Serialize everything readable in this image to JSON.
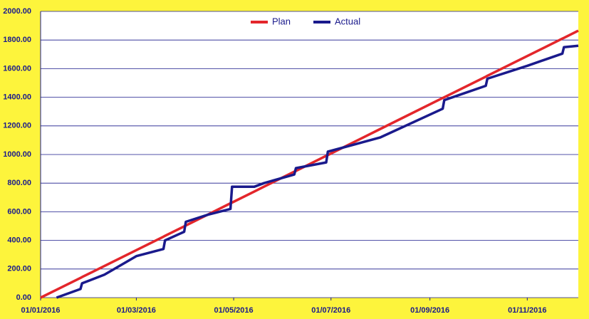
{
  "chart_data": {
    "type": "line",
    "x": [
      "2016-01-01",
      "2016-01-11",
      "2016-01-26",
      "2016-01-27",
      "2016-02-10",
      "2016-03-01",
      "2016-03-18",
      "2016-03-19",
      "2016-03-31",
      "2016-04-01",
      "2016-04-15",
      "2016-04-29",
      "2016-04-30",
      "2016-05-14",
      "2016-05-20",
      "2016-06-08",
      "2016-06-09",
      "2016-06-28",
      "2016-06-29",
      "2016-08-01",
      "2016-09-09",
      "2016-09-10",
      "2016-10-06",
      "2016-10-07",
      "2016-11-01",
      "2016-11-23",
      "2016-11-24",
      "2016-12-03"
    ],
    "series": [
      {
        "name": "Plan",
        "color": "#e3262b",
        "values": [
          0,
          55,
          138,
          144,
          221,
          332,
          426,
          432,
          498,
          504,
          581,
          659,
          664,
          742,
          775,
          880,
          885,
          991,
          996,
          1179,
          1395,
          1400,
          1544,
          1550,
          1688,
          1810,
          1815,
          1865
        ]
      },
      {
        "name": "Actual",
        "color": "#1a1a8c",
        "values": [
          null,
          0,
          60,
          100,
          160,
          290,
          340,
          400,
          460,
          530,
          580,
          620,
          775,
          775,
          800,
          860,
          905,
          945,
          1020,
          1120,
          1320,
          1380,
          1480,
          1530,
          1620,
          1705,
          1750,
          1760
        ]
      }
    ],
    "xlim": [
      "2016-01-01",
      "2016-12-03"
    ],
    "xticks": [
      {
        "value": "2016-01-01",
        "label": "01/01/2016"
      },
      {
        "value": "2016-03-01",
        "label": "01/03/2016"
      },
      {
        "value": "2016-05-01",
        "label": "01/05/2016"
      },
      {
        "value": "2016-07-01",
        "label": "01/07/2016"
      },
      {
        "value": "2016-09-01",
        "label": "01/09/2016"
      },
      {
        "value": "2016-11-01",
        "label": "01/11/2016"
      }
    ],
    "ylim": [
      0,
      2000
    ],
    "yticks": [
      {
        "value": 0,
        "label": "0.00"
      },
      {
        "value": 200,
        "label": "200.00"
      },
      {
        "value": 400,
        "label": "400.00"
      },
      {
        "value": 600,
        "label": "600.00"
      },
      {
        "value": 800,
        "label": "800.00"
      },
      {
        "value": 1000,
        "label": "1000.00"
      },
      {
        "value": 1200,
        "label": "1200.00"
      },
      {
        "value": 1400,
        "label": "1400.00"
      },
      {
        "value": 1600,
        "label": "1600.00"
      },
      {
        "value": 1800,
        "label": "1800.00"
      },
      {
        "value": 2000,
        "label": "2000.00"
      }
    ],
    "grid": true,
    "legend": "top"
  }
}
